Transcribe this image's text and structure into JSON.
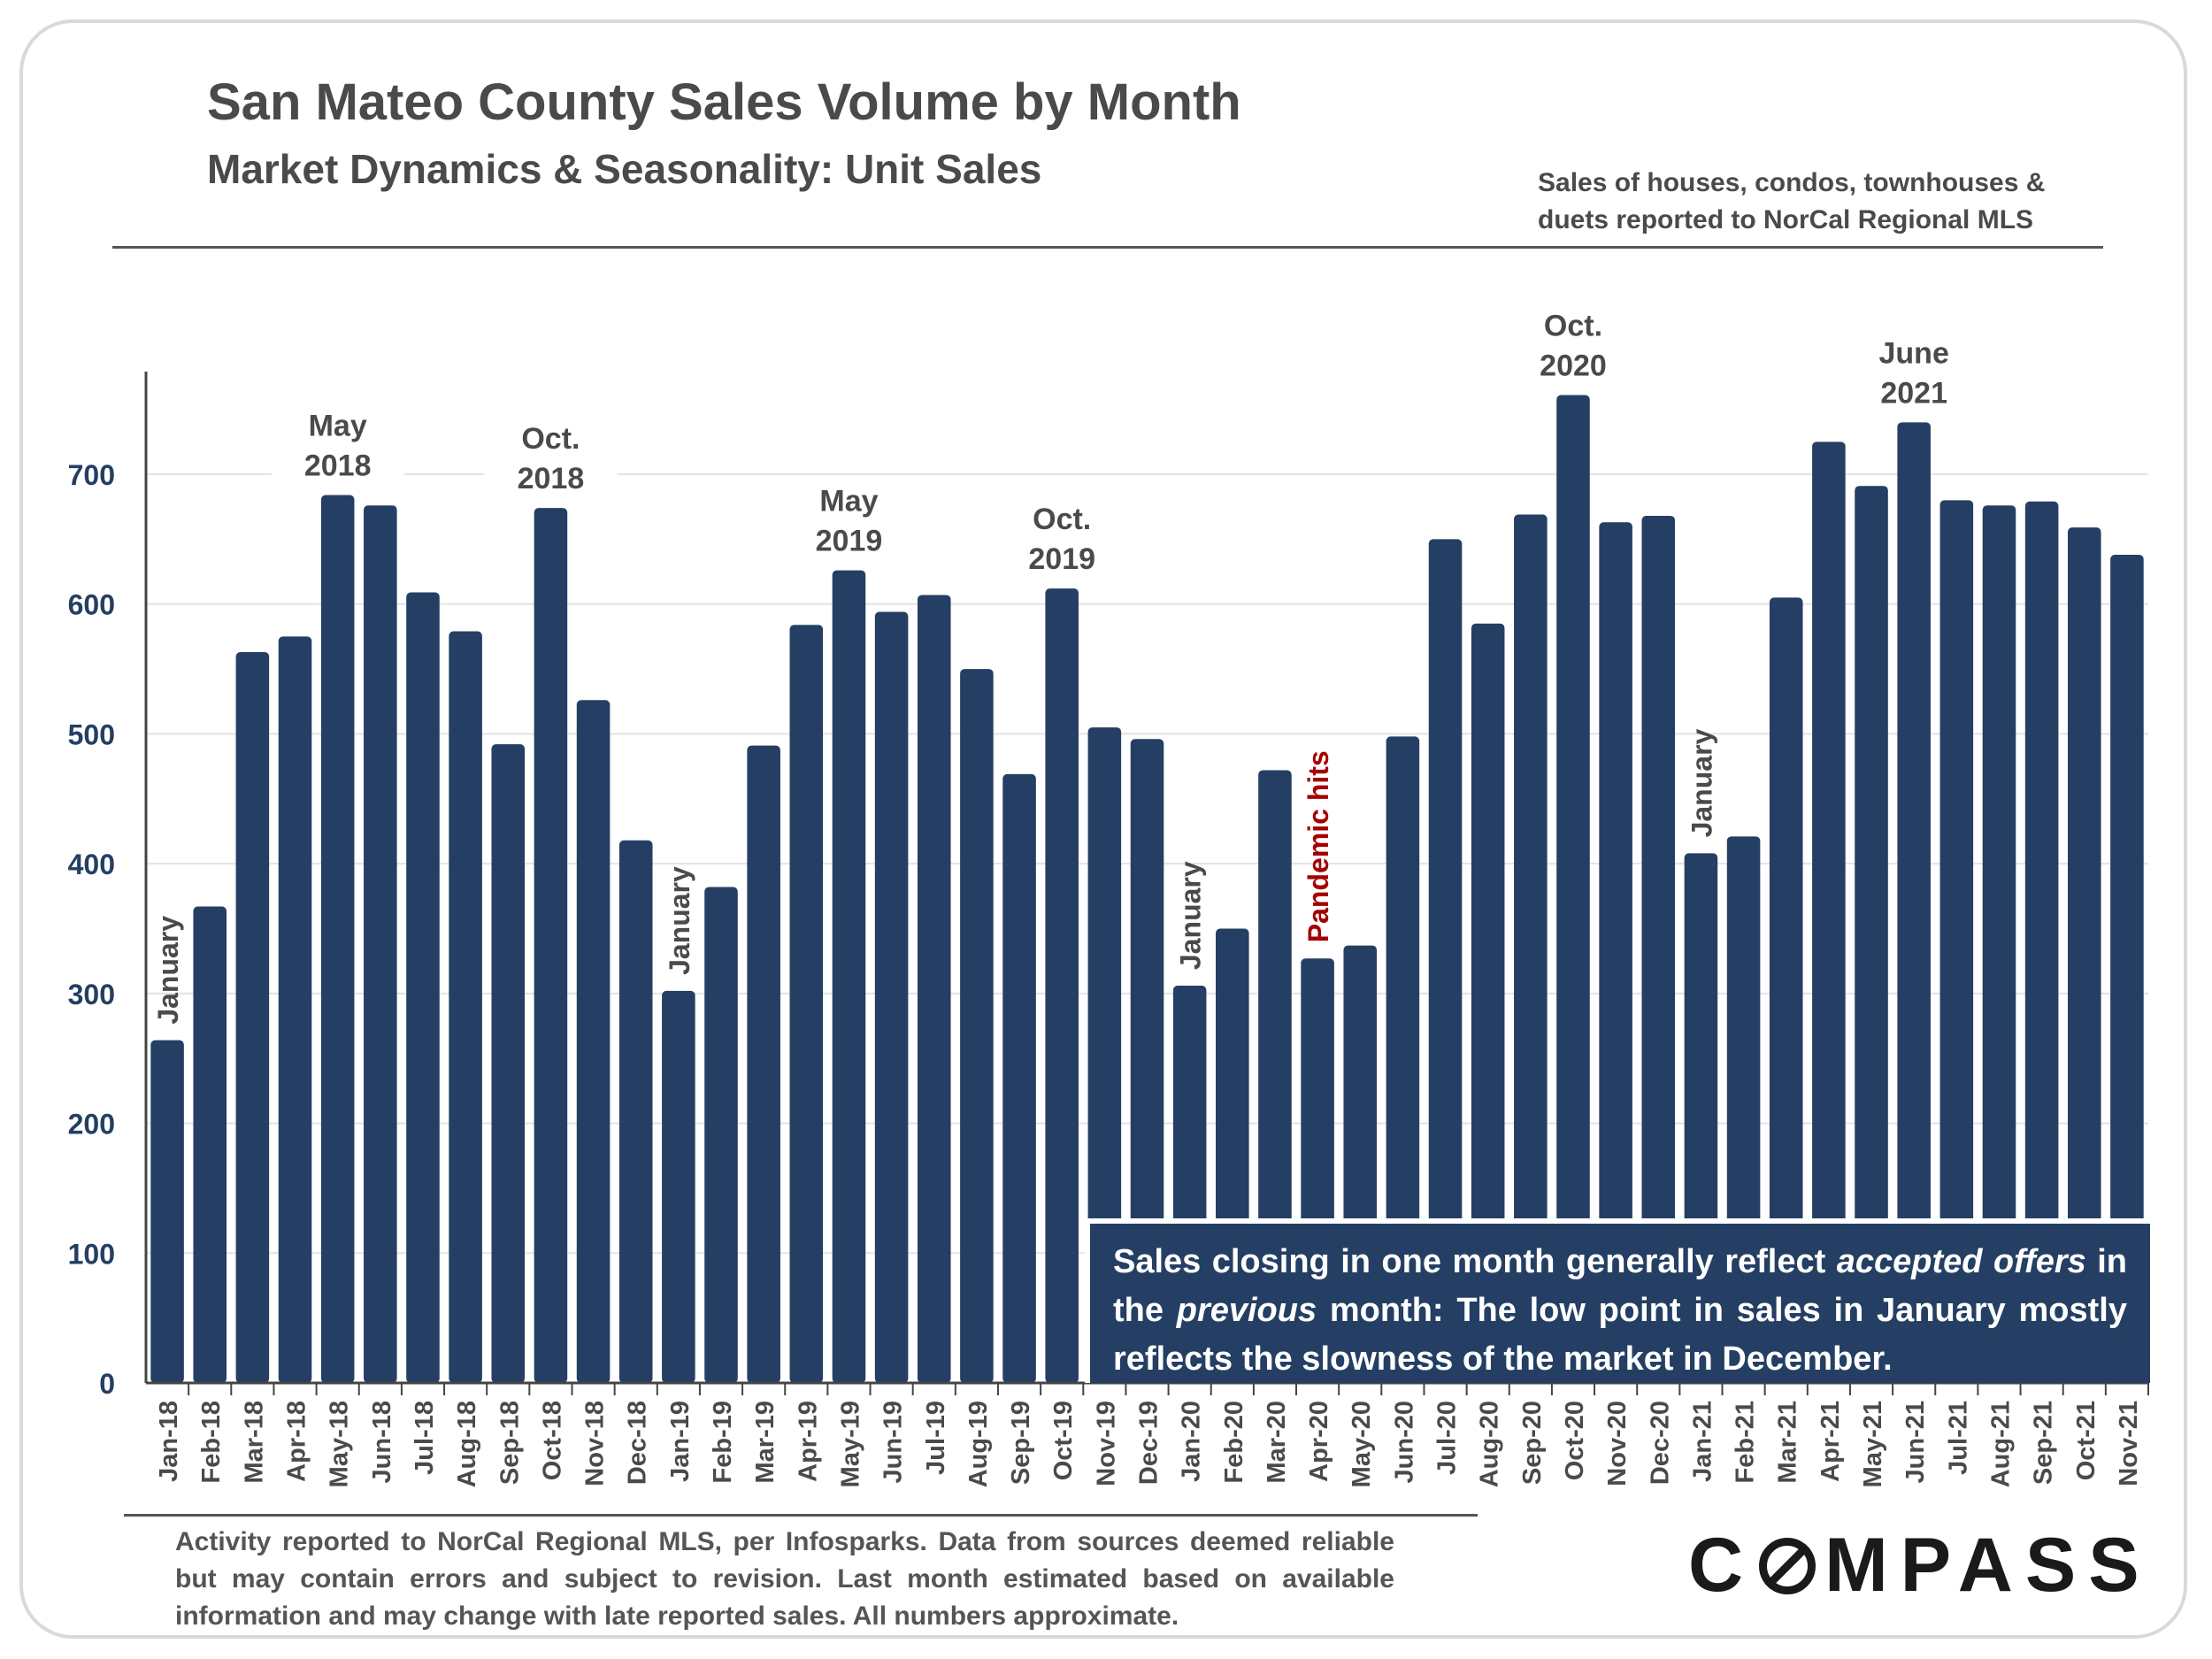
{
  "header": {
    "title": "San Mateo County Sales Volume by Month",
    "subtitle": "Market Dynamics & Seasonality: Unit Sales",
    "note_line1": "Sales of houses, condos, townhouses &",
    "note_line2": "duets reported to NorCal Regional MLS"
  },
  "callout": {
    "part1": "Sales closing in one month generally reflect ",
    "em1": "accepted offers",
    "part2": " in the ",
    "em2": "previous",
    "part3": " month: The low point in sales in January mostly reflects the slowness of the market in December."
  },
  "footnote": "Activity reported to NorCal Regional MLS, per Infosparks. Data from sources deemed reliable but may contain errors and subject to revision. Last month estimated based on available information and may change with late reported sales. All numbers approximate.",
  "logo": {
    "text_before": "C",
    "text_after": "MPASS"
  },
  "colors": {
    "bar": "#243f63",
    "axis_text": "#243f63",
    "label_text": "#4a4a4a",
    "highlight": "#a50000",
    "grid": "#e3e3e3"
  },
  "chart_data": {
    "type": "bar",
    "ylim": [
      0,
      780
    ],
    "yticks": [
      0,
      100,
      200,
      300,
      400,
      500,
      600,
      700
    ],
    "grid": true,
    "categories": [
      "Jan-18",
      "Feb-18",
      "Mar-18",
      "Apr-18",
      "May-18",
      "Jun-18",
      "Jul-18",
      "Aug-18",
      "Sep-18",
      "Oct-18",
      "Nov-18",
      "Dec-18",
      "Jan-19",
      "Feb-19",
      "Mar-19",
      "Apr-19",
      "May-19",
      "Jun-19",
      "Jul-19",
      "Aug-19",
      "Sep-19",
      "Oct-19",
      "Nov-19",
      "Dec-19",
      "Jan-20",
      "Feb-20",
      "Mar-20",
      "Apr-20",
      "May-20",
      "Jun-20",
      "Jul-20",
      "Aug-20",
      "Sep-20",
      "Oct-20",
      "Nov-20",
      "Dec-20",
      "Jan-21",
      "Feb-21",
      "Mar-21",
      "Apr-21",
      "May-21",
      "Jun-21",
      "Jul-21",
      "Aug-21",
      "Sep-21",
      "Oct-21",
      "Nov-21"
    ],
    "values": [
      264,
      367,
      563,
      575,
      684,
      676,
      609,
      579,
      492,
      674,
      526,
      418,
      302,
      382,
      491,
      584,
      626,
      594,
      607,
      550,
      469,
      612,
      505,
      496,
      306,
      350,
      472,
      327,
      337,
      498,
      650,
      585,
      669,
      761,
      663,
      668,
      408,
      421,
      605,
      725,
      691,
      740,
      680,
      676,
      679,
      659,
      638
    ],
    "annotations": [
      {
        "index": 4,
        "lines": [
          "May",
          "2018"
        ],
        "orientation": "horizontal",
        "style": "label"
      },
      {
        "index": 9,
        "lines": [
          "Oct.",
          "2018"
        ],
        "orientation": "horizontal",
        "style": "label"
      },
      {
        "index": 16,
        "lines": [
          "May",
          "2019"
        ],
        "orientation": "horizontal",
        "style": "label"
      },
      {
        "index": 21,
        "lines": [
          "Oct.",
          "2019"
        ],
        "orientation": "horizontal",
        "style": "label"
      },
      {
        "index": 33,
        "lines": [
          "Oct.",
          "2020"
        ],
        "orientation": "horizontal",
        "style": "label"
      },
      {
        "index": 41,
        "lines": [
          "June",
          "2021"
        ],
        "orientation": "horizontal",
        "style": "label"
      },
      {
        "index": 0,
        "lines": [
          "January"
        ],
        "orientation": "vertical",
        "style": "label"
      },
      {
        "index": 12,
        "lines": [
          "January"
        ],
        "orientation": "vertical",
        "style": "label"
      },
      {
        "index": 24,
        "lines": [
          "January"
        ],
        "orientation": "vertical",
        "style": "label"
      },
      {
        "index": 36,
        "lines": [
          "January"
        ],
        "orientation": "vertical",
        "style": "label"
      },
      {
        "index": 27,
        "lines": [
          "Pandemic hits"
        ],
        "orientation": "vertical",
        "style": "highlight"
      }
    ]
  }
}
